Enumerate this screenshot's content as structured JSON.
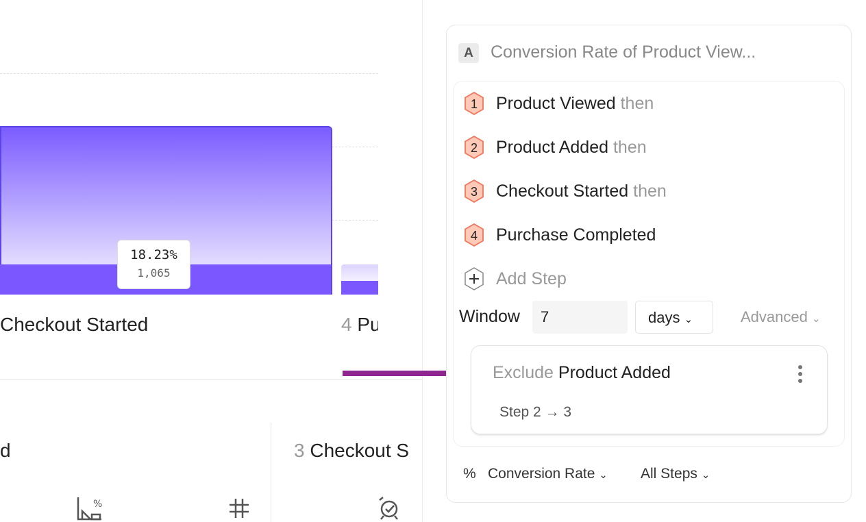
{
  "chart_data": {
    "type": "bar",
    "categories": [
      "Checkout Started",
      "Pu"
    ],
    "category_numbers": [
      "",
      "4"
    ],
    "tooltip": {
      "percent": "18.23%",
      "count": "1,065"
    },
    "grid": true
  },
  "bottom_cards": [
    {
      "number": "",
      "label": "d"
    },
    {
      "number": "3",
      "label": "Checkout S"
    }
  ],
  "icons": [
    "conversion-chart-icon",
    "hash-icon",
    "alarm-check-icon"
  ],
  "arrow_color": "#8e2590",
  "accent": "#7b57ff",
  "panel": {
    "badge": "A",
    "title": "Conversion Rate of Product View...",
    "steps": [
      {
        "n": "1",
        "label": "Product Viewed",
        "suffix": "then"
      },
      {
        "n": "2",
        "label": "Product Added",
        "suffix": "then"
      },
      {
        "n": "3",
        "label": "Checkout Started",
        "suffix": "then"
      },
      {
        "n": "4",
        "label": "Purchase Completed",
        "suffix": ""
      }
    ],
    "add_step": "Add Step",
    "window_label": "Window",
    "window_value": "7",
    "window_unit": "days",
    "advanced": "Advanced",
    "exclusion": {
      "prefix": "Exclude",
      "event": "Product Added",
      "range": "Step 2 → 3"
    },
    "metric_symbol": "%",
    "metric": "Conversion Rate",
    "steps_select": "All Steps"
  }
}
